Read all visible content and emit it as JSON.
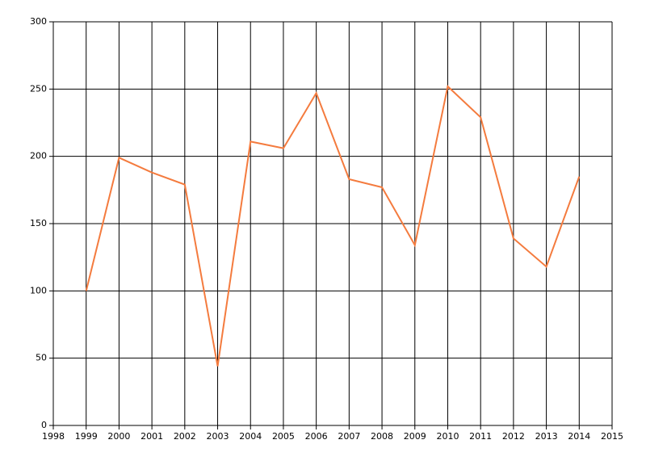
{
  "chart_data": {
    "type": "line",
    "x": [
      1999,
      2000,
      2001,
      2002,
      2003,
      2004,
      2005,
      2006,
      2007,
      2008,
      2009,
      2010,
      2011,
      2012,
      2013,
      2014
    ],
    "series": [
      {
        "color": "#f47b3e",
        "values": [
          100,
          199,
          188,
          179,
          44,
          211,
          206,
          247,
          183,
          177,
          134,
          252,
          229,
          139,
          118,
          185
        ]
      }
    ],
    "xlim": [
      1998,
      2015
    ],
    "xticks": [
      1998,
      1999,
      2000,
      2001,
      2002,
      2003,
      2004,
      2005,
      2006,
      2007,
      2008,
      2009,
      2010,
      2011,
      2012,
      2013,
      2014,
      2015
    ],
    "ylim": [
      0,
      300
    ],
    "yticks": [
      0,
      50,
      100,
      150,
      200,
      250,
      300
    ],
    "grid": true
  }
}
